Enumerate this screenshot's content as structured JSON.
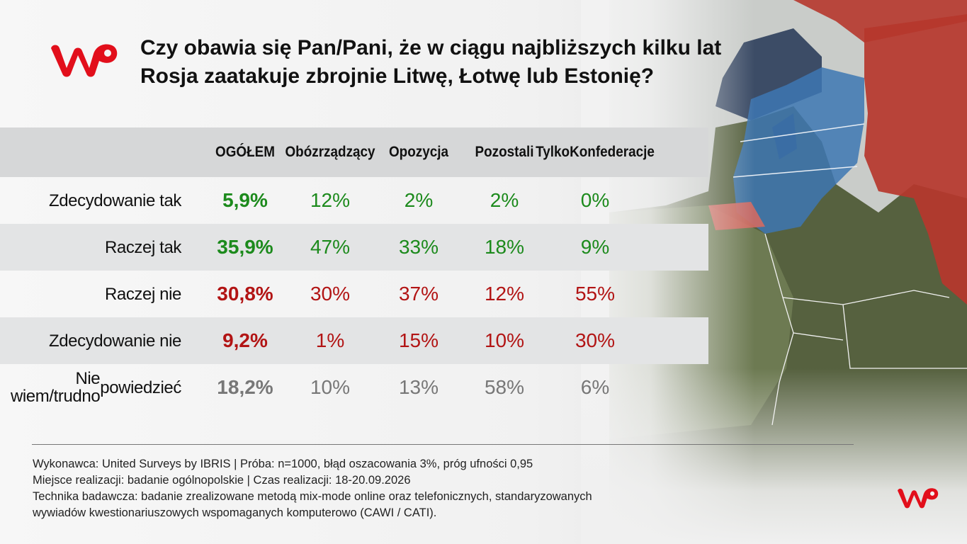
{
  "title": "Czy obawia się Pan/Pani, że w ciągu najbliższych kilku lat Rosja zaatakuje zbrojnie Litwę, Łotwę lub Estonię?",
  "colors": {
    "brand": "#e20f1b",
    "yes": "#1c8a1c",
    "no": "#b21414",
    "neutral": "#777777"
  },
  "chart_data": {
    "type": "table",
    "columns": [
      "OGÓŁEM",
      "Obóz rządzący",
      "Opozycja",
      "Pozostali",
      "Tylko Konfederacje"
    ],
    "column_lines": [
      [
        "OGÓŁEM"
      ],
      [
        "Obóz",
        "rządzący"
      ],
      [
        "Opozycja"
      ],
      [
        "Pozostali"
      ],
      [
        "Tylko",
        "Konfederacje"
      ]
    ],
    "rows": [
      {
        "label": "Zdecydowanie tak",
        "label_lines": [
          "Zdecydowanie tak"
        ],
        "tone": "yes",
        "values": [
          "5,9%",
          "12%",
          "2%",
          "2%",
          "0%"
        ]
      },
      {
        "label": "Raczej tak",
        "label_lines": [
          "Raczej tak"
        ],
        "tone": "yes",
        "values": [
          "35,9%",
          "47%",
          "33%",
          "18%",
          "9%"
        ]
      },
      {
        "label": "Raczej nie",
        "label_lines": [
          "Raczej nie"
        ],
        "tone": "no",
        "values": [
          "30,8%",
          "30%",
          "37%",
          "12%",
          "55%"
        ]
      },
      {
        "label": "Zdecydowanie nie",
        "label_lines": [
          "Zdecydowanie nie"
        ],
        "tone": "no",
        "values": [
          "9,2%",
          "1%",
          "15%",
          "10%",
          "30%"
        ]
      },
      {
        "label": "Nie wiem/trudno powiedzieć",
        "label_lines": [
          "Nie wiem/trudno",
          "powiedzieć"
        ],
        "tone": "neutral",
        "values": [
          "18,2%",
          "10%",
          "13%",
          "58%",
          "6%"
        ]
      }
    ]
  },
  "footer": {
    "line1": "Wykonawca: United Surveys by IBRIS | Próba: n=1000, błąd oszacowania 3%, próg ufności 0,95",
    "line2": "Miejsce realizacji: badanie ogólnopolskie | Czas realizacji: 18-20.09.2026",
    "line3": "Technika badawcza: badanie zrealizowane metodą mix-mode online oraz telefonicznych, standaryzowanych",
    "line4": "wywiadów kwestionariuszowych wspomaganych komputerowo (CAWI / CATI)."
  }
}
